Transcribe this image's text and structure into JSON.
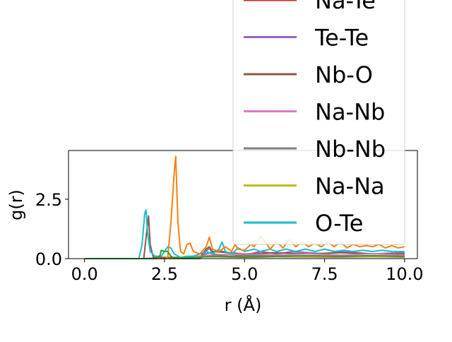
{
  "chart_data": {
    "type": "line",
    "xlabel": "r (Å)",
    "ylabel": "g(r)",
    "xlim": [
      -0.5,
      10.4
    ],
    "ylim": [
      0,
      4.55
    ],
    "xticks": [
      {
        "value": 0.0,
        "label": "0.0"
      },
      {
        "value": 2.5,
        "label": "2.5"
      },
      {
        "value": 5.0,
        "label": "5.0"
      },
      {
        "value": 7.5,
        "label": "7.5"
      },
      {
        "value": 10.0,
        "label": "10.0"
      }
    ],
    "yticks": [
      {
        "value": 0.0,
        "label": "0.0"
      },
      {
        "value": 2.5,
        "label": "2.5"
      }
    ],
    "grid": false,
    "legend_placement": "top-right, extending above the plot area",
    "series": [
      {
        "name": "Na-Te",
        "color": "#d62728",
        "legend": true,
        "points": [
          [
            0,
            0
          ],
          [
            1.8,
            0
          ],
          [
            2.4,
            0.02
          ],
          [
            3,
            0.05
          ],
          [
            4,
            0.08
          ],
          [
            5,
            0.06
          ],
          [
            6,
            0.08
          ],
          [
            7,
            0.07
          ],
          [
            8,
            0.07
          ],
          [
            9,
            0.08
          ],
          [
            10,
            0.07
          ]
        ]
      },
      {
        "name": "Te-Te",
        "color": "#9467bd",
        "legend": true,
        "points": [
          [
            0,
            0
          ],
          [
            3.6,
            0
          ],
          [
            3.8,
            0.2
          ],
          [
            4.2,
            0.35
          ],
          [
            4.6,
            0.2
          ],
          [
            5,
            0.15
          ],
          [
            5.5,
            0.3
          ],
          [
            6,
            0.2
          ],
          [
            6.5,
            0.3
          ],
          [
            7,
            0.25
          ],
          [
            7.5,
            0.2
          ],
          [
            8,
            0.3
          ],
          [
            8.5,
            0.25
          ],
          [
            9,
            0.2
          ],
          [
            10,
            0.25
          ]
        ]
      },
      {
        "name": "Nb-O",
        "color": "#8c564b",
        "legend": true,
        "points": [
          [
            0,
            0
          ],
          [
            1.85,
            0
          ],
          [
            1.95,
            1.2
          ],
          [
            2.0,
            1.8
          ],
          [
            2.05,
            0.6
          ],
          [
            2.15,
            0.05
          ],
          [
            3.6,
            0.05
          ],
          [
            3.8,
            0.4
          ],
          [
            3.9,
            0.5
          ],
          [
            4.0,
            0.3
          ],
          [
            4.5,
            0.25
          ],
          [
            5,
            0.2
          ],
          [
            6,
            0.25
          ],
          [
            7,
            0.2
          ],
          [
            8,
            0.25
          ],
          [
            9,
            0.2
          ],
          [
            10,
            0.2
          ]
        ]
      },
      {
        "name": "Na-Nb",
        "color": "#e377c2",
        "legend": true,
        "points": [
          [
            0,
            0
          ],
          [
            3,
            0
          ],
          [
            3.5,
            0.1
          ],
          [
            4,
            0.15
          ],
          [
            5,
            0.2
          ],
          [
            6,
            0.15
          ],
          [
            7,
            0.2
          ],
          [
            8,
            0.15
          ],
          [
            9,
            0.2
          ],
          [
            10,
            0.15
          ]
        ]
      },
      {
        "name": "Nb-Nb",
        "color": "#7f7f7f",
        "legend": true,
        "points": [
          [
            0,
            0
          ],
          [
            3.6,
            0
          ],
          [
            3.8,
            0.3
          ],
          [
            3.9,
            0.45
          ],
          [
            4.0,
            0.2
          ],
          [
            4.5,
            0.1
          ],
          [
            5,
            0.15
          ],
          [
            6,
            0.1
          ],
          [
            7,
            0.12
          ],
          [
            8,
            0.1
          ],
          [
            9,
            0.12
          ],
          [
            10,
            0.1
          ]
        ]
      },
      {
        "name": "Na-Na",
        "color": "#bcbd22",
        "legend": true,
        "points": [
          [
            0,
            0
          ],
          [
            3,
            0
          ],
          [
            3.5,
            0.05
          ],
          [
            4,
            0.1
          ],
          [
            5,
            0.08
          ],
          [
            6,
            0.1
          ],
          [
            7,
            0.08
          ],
          [
            8,
            0.1
          ],
          [
            9,
            0.08
          ],
          [
            10,
            0.1
          ]
        ]
      },
      {
        "name": "O-Te",
        "color": "#17becf",
        "legend": true,
        "points": [
          [
            0,
            0
          ],
          [
            1.7,
            0
          ],
          [
            1.8,
            0.6
          ],
          [
            1.88,
            1.9
          ],
          [
            1.92,
            2.05
          ],
          [
            1.97,
            1.1
          ],
          [
            2.05,
            0.3
          ],
          [
            2.2,
            0.1
          ],
          [
            2.4,
            0.1
          ],
          [
            2.6,
            0.5
          ],
          [
            2.7,
            0.45
          ],
          [
            2.8,
            0.2
          ],
          [
            3.0,
            0.05
          ],
          [
            3.2,
            0.1
          ],
          [
            3.4,
            0.1
          ],
          [
            3.6,
            0.2
          ],
          [
            3.8,
            0.3
          ],
          [
            4.0,
            0.2
          ],
          [
            4.2,
            0.4
          ],
          [
            4.3,
            0.7
          ],
          [
            4.4,
            0.3
          ],
          [
            4.6,
            0.2
          ],
          [
            4.8,
            0.45
          ],
          [
            5.0,
            0.3
          ],
          [
            5.3,
            0.4
          ],
          [
            5.5,
            0.3
          ],
          [
            5.8,
            0.4
          ],
          [
            6.0,
            0.3
          ],
          [
            6.3,
            0.4
          ],
          [
            6.6,
            0.3
          ],
          [
            6.9,
            0.4
          ],
          [
            7.2,
            0.3
          ],
          [
            7.5,
            0.4
          ],
          [
            7.8,
            0.3
          ],
          [
            8.1,
            0.35
          ],
          [
            8.4,
            0.3
          ],
          [
            8.7,
            0.35
          ],
          [
            9.0,
            0.3
          ],
          [
            9.3,
            0.35
          ],
          [
            9.6,
            0.3
          ],
          [
            10.0,
            0.3
          ]
        ]
      },
      {
        "name": "",
        "color": "#ff7f0e",
        "legend": false,
        "points": [
          [
            0,
            0
          ],
          [
            2.5,
            0
          ],
          [
            2.6,
            0.05
          ],
          [
            2.7,
            1.5
          ],
          [
            2.8,
            3.6
          ],
          [
            2.85,
            4.3
          ],
          [
            2.92,
            1.5
          ],
          [
            3.0,
            0.3
          ],
          [
            3.1,
            0.2
          ],
          [
            3.2,
            0.6
          ],
          [
            3.3,
            0.65
          ],
          [
            3.4,
            0.3
          ],
          [
            3.6,
            0.2
          ],
          [
            3.8,
            0.5
          ],
          [
            3.9,
            0.9
          ],
          [
            4.0,
            0.4
          ],
          [
            4.2,
            0.3
          ],
          [
            4.4,
            0.5
          ],
          [
            4.6,
            0.3
          ],
          [
            4.7,
            0.6
          ],
          [
            4.8,
            0.4
          ],
          [
            5.0,
            0.35
          ],
          [
            5.2,
            0.6
          ],
          [
            5.3,
            0.5
          ],
          [
            5.5,
            0.95
          ],
          [
            5.7,
            0.6
          ],
          [
            5.8,
            0.4
          ],
          [
            6.0,
            0.7
          ],
          [
            6.2,
            0.45
          ],
          [
            6.4,
            0.8
          ],
          [
            6.6,
            0.5
          ],
          [
            6.8,
            0.7
          ],
          [
            7.0,
            0.5
          ],
          [
            7.2,
            0.65
          ],
          [
            7.4,
            0.5
          ],
          [
            7.6,
            0.7
          ],
          [
            7.8,
            0.5
          ],
          [
            8.0,
            0.7
          ],
          [
            8.2,
            0.45
          ],
          [
            8.4,
            0.6
          ],
          [
            8.6,
            0.5
          ],
          [
            8.8,
            0.55
          ],
          [
            9.0,
            0.5
          ],
          [
            9.2,
            0.6
          ],
          [
            9.4,
            0.45
          ],
          [
            9.6,
            0.55
          ],
          [
            9.8,
            0.45
          ],
          [
            10.0,
            0.5
          ]
        ]
      },
      {
        "name": "",
        "color": "#2ca02c",
        "legend": false,
        "points": [
          [
            0,
            0
          ],
          [
            2.2,
            0
          ],
          [
            2.35,
            0.1
          ],
          [
            2.4,
            0.35
          ],
          [
            2.5,
            0.3
          ],
          [
            2.6,
            0.3
          ],
          [
            2.7,
            0.1
          ],
          [
            2.8,
            0.02
          ],
          [
            3.5,
            0.05
          ],
          [
            4,
            0.1
          ],
          [
            5,
            0.08
          ],
          [
            6,
            0.1
          ],
          [
            7,
            0.12
          ],
          [
            8,
            0.1
          ],
          [
            9,
            0.12
          ],
          [
            10,
            0.1
          ]
        ]
      }
    ]
  }
}
